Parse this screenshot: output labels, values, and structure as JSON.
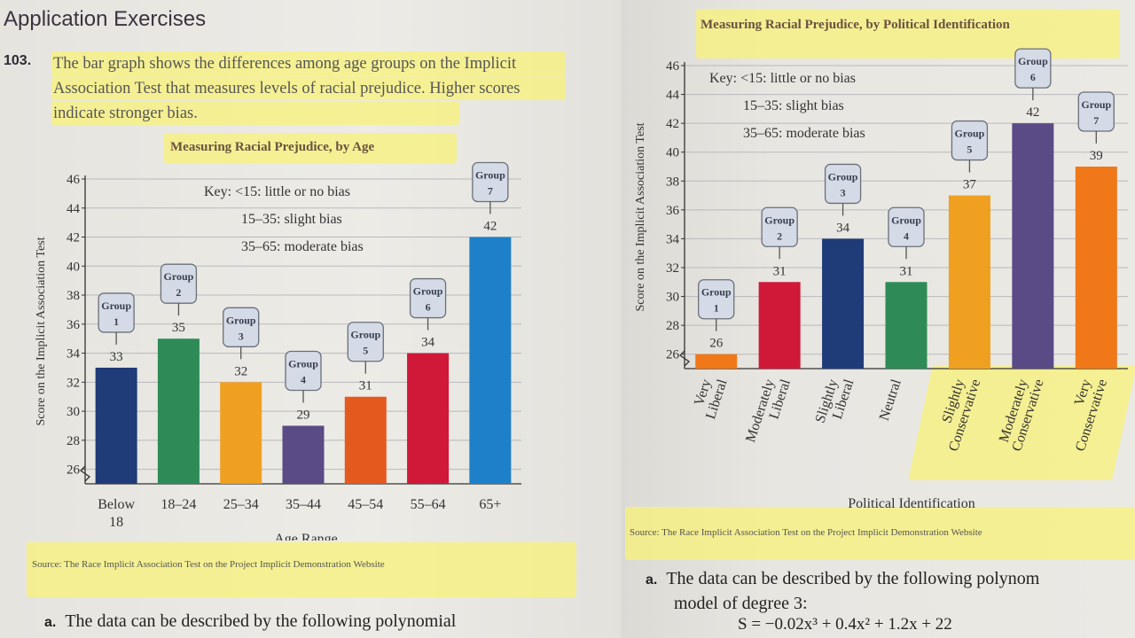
{
  "section_title": "Application Exercises",
  "exercise": {
    "number": "103.",
    "text": "The bar graph shows the differences among age groups on the Implicit Association Test that measures levels of racial prejudice. Higher scores indicate stronger bias."
  },
  "colors": {
    "highlight": "#f8f278",
    "dark_blue": "#1f3b78",
    "green": "#2e8b57",
    "orange": "#f0a020",
    "purple": "#5a4a85",
    "red_orange": "#e45a1e",
    "crimson": "#d01838",
    "blue": "#1e80c8",
    "dark_orange": "#f07818"
  },
  "chart_data": [
    {
      "type": "bar",
      "title": "Measuring Racial Prejudice, by Age",
      "xlabel": "Age Range",
      "ylabel": "Score on the Implicit Association Test",
      "ylim": [
        25,
        46
      ],
      "yticks": [
        26,
        28,
        30,
        32,
        34,
        36,
        38,
        40,
        42,
        44,
        46
      ],
      "key": [
        "Key:   <15: little or no bias",
        "15–35: slight bias",
        "35–65: moderate bias"
      ],
      "categories": [
        "Below 18",
        "18–24",
        "25–34",
        "35–44",
        "45–54",
        "55–64",
        "65+"
      ],
      "values": [
        33,
        35,
        32,
        29,
        31,
        34,
        42
      ],
      "callouts": [
        [
          "Group",
          "1"
        ],
        [
          "Group",
          "2"
        ],
        [
          "Group",
          "3"
        ],
        [
          "Group",
          "4"
        ],
        [
          "Group",
          "5"
        ],
        [
          "Group",
          "6"
        ],
        [
          "Group",
          "7"
        ]
      ],
      "bar_colors": [
        "#1f3b78",
        "#2e8b57",
        "#f0a020",
        "#5a4a85",
        "#e45a1e",
        "#d01838",
        "#1e80c8"
      ],
      "source": "Source: The Race Implicit Association Test on the Project Implicit Demonstration Website"
    },
    {
      "type": "bar",
      "title": "Measuring Racial Prejudice, by Political Identification",
      "xlabel": "Political Identification",
      "ylabel": "Score on the Implicit Association Test",
      "ylim": [
        25,
        46
      ],
      "yticks": [
        26,
        28,
        30,
        32,
        34,
        36,
        38,
        40,
        42,
        44,
        46
      ],
      "key": [
        "Key:  <15: little or no bias",
        "15–35: slight bias",
        "35–65: moderate bias"
      ],
      "categories": [
        [
          "Very",
          "Liberal"
        ],
        [
          "Moderately",
          "Liberal"
        ],
        [
          "Slightly",
          "Liberal"
        ],
        [
          "Neutral"
        ],
        [
          "Slightly",
          "Conservative"
        ],
        [
          "Moderately",
          "Conservative"
        ],
        [
          "Very",
          "Conservative"
        ]
      ],
      "values": [
        26,
        31,
        34,
        31,
        37,
        42,
        39
      ],
      "callouts": [
        [
          "Group",
          "1"
        ],
        [
          "Group",
          "2"
        ],
        [
          "Group",
          "3"
        ],
        [
          "Group",
          "4"
        ],
        [
          "Group",
          "5"
        ],
        [
          "Group",
          "6"
        ],
        [
          "Group",
          "7"
        ]
      ],
      "bar_colors": [
        "#f07818",
        "#d01838",
        "#1f3b78",
        "#2e8b57",
        "#f0a020",
        "#5a4a85",
        "#f07818"
      ],
      "source": "Source: The Race Implicit Association Test on the Project Implicit Demonstration Website"
    }
  ],
  "part_a_left": "The data can be described by the following polynomial",
  "part_a_right": {
    "label": "a.",
    "line1": "The data can be described by the following polynom",
    "line2": "model of degree 3:",
    "equation": "S = −0.02x³ + 0.4x² + 1.2x + 22"
  },
  "part_a_label": "a."
}
